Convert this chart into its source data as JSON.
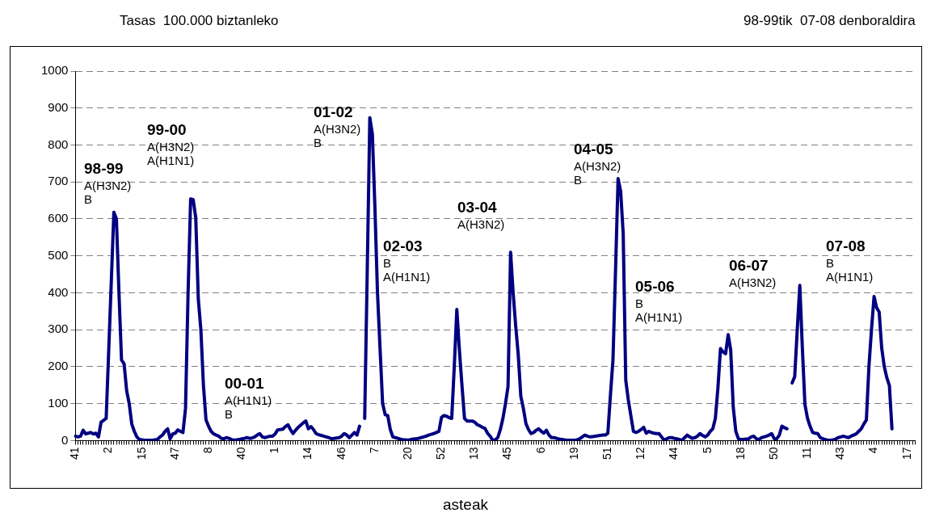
{
  "chart_data": {
    "type": "line",
    "title": "Tasas  100.000 biztanleko",
    "subtitle": "98-99tik  07-08 denboraldira",
    "xlabel": "asteak",
    "categories": [
      "41",
      null,
      null,
      null,
      null,
      null,
      null,
      null,
      null,
      null,
      null,
      null,
      null,
      "2",
      null,
      null,
      null,
      null,
      null,
      null,
      null,
      null,
      null,
      null,
      null,
      null,
      "15",
      null,
      null,
      null,
      null,
      null,
      null,
      null,
      null,
      null,
      null,
      null,
      null,
      "47",
      null,
      null,
      null,
      null,
      null,
      null,
      null,
      null,
      null,
      null,
      null,
      null,
      "8",
      null,
      null,
      null,
      null,
      null,
      null,
      null,
      null,
      null,
      null,
      null,
      null,
      "40",
      null,
      null,
      null,
      null,
      null,
      null,
      null,
      null,
      null,
      null,
      null,
      null,
      "1",
      null,
      null,
      null,
      null,
      null,
      null,
      null,
      null,
      null,
      null,
      null,
      null,
      "14",
      null,
      null,
      null,
      null,
      null,
      null,
      null,
      null,
      null,
      null,
      null,
      null,
      "46",
      null,
      null,
      null,
      null,
      null,
      null,
      null,
      null,
      null,
      null,
      null,
      null,
      "7",
      null,
      null,
      null,
      null,
      null,
      null,
      null,
      null,
      null,
      null,
      null,
      null,
      "20",
      null,
      null,
      null,
      null,
      null,
      null,
      null,
      null,
      null,
      null,
      null,
      null,
      "52",
      null,
      null,
      null,
      null,
      null,
      null,
      null,
      null,
      null,
      null,
      null,
      null,
      "13",
      null,
      null,
      null,
      null,
      null,
      null,
      null,
      null,
      null,
      null,
      null,
      null,
      "45",
      null,
      null,
      null,
      null,
      null,
      null,
      null,
      null,
      null,
      null,
      null,
      null,
      "6",
      null,
      null,
      null,
      null,
      null,
      null,
      null,
      null,
      null,
      null,
      null,
      null,
      "19",
      null,
      null,
      null,
      null,
      null,
      null,
      null,
      null,
      null,
      null,
      null,
      null,
      "51",
      null,
      null,
      null,
      null,
      null,
      null,
      null,
      null,
      null,
      null,
      null,
      null,
      "12",
      null,
      null,
      null,
      null,
      null,
      null,
      null,
      null,
      null,
      null,
      null,
      null,
      "44",
      null,
      null,
      null,
      null,
      null,
      null,
      null,
      null,
      null,
      null,
      null,
      null,
      "5",
      null,
      null,
      null,
      null,
      null,
      null,
      null,
      null,
      null,
      null,
      null,
      null,
      "18",
      null,
      null,
      null,
      null,
      null,
      null,
      null,
      null,
      null,
      null,
      null,
      null,
      "50",
      null,
      null,
      null,
      null,
      null,
      null,
      null,
      null,
      null,
      null,
      null,
      null,
      "11",
      null,
      null,
      null,
      null,
      null,
      null,
      null,
      null,
      null,
      null,
      null,
      null,
      "43",
      null,
      null,
      null,
      null,
      null,
      null,
      null,
      null,
      null,
      null,
      null,
      null,
      "4",
      null,
      null,
      null,
      null,
      null,
      null,
      null,
      null,
      null,
      null,
      null,
      null,
      "17",
      null,
      null,
      null
    ],
    "color": "#000080",
    "values": [
      12,
      10,
      12,
      28,
      18,
      20,
      22,
      18,
      20,
      10,
      50,
      55,
      60,
      245,
      430,
      618,
      600,
      400,
      218,
      208,
      135,
      100,
      45,
      25,
      10,
      3,
      2,
      1,
      1,
      1,
      1,
      2,
      3,
      10,
      15,
      25,
      32,
      5,
      18,
      20,
      29,
      25,
      22,
      87,
      400,
      654,
      652,
      603,
      383,
      300,
      150,
      56,
      39,
      25,
      18,
      15,
      12,
      6,
      5,
      8,
      6,
      3,
      1,
      2,
      3,
      5,
      6,
      8,
      6,
      7,
      10,
      15,
      19,
      10,
      8,
      10,
      12,
      12,
      18,
      29,
      30,
      31,
      38,
      43,
      30,
      19,
      28,
      36,
      42,
      48,
      53,
      32,
      38,
      30,
      19,
      16,
      14,
      12,
      10,
      8,
      5,
      6,
      7,
      8,
      12,
      19,
      15,
      8,
      15,
      22,
      15,
      39,
      null,
      60,
      460,
      874,
      830,
      630,
      400,
      250,
      101,
      70,
      68,
      30,
      10,
      8,
      6,
      4,
      2,
      2,
      1,
      3,
      4,
      5,
      6,
      8,
      10,
      12,
      15,
      17,
      19,
      22,
      25,
      63,
      68,
      66,
      62,
      60,
      200,
      355,
      245,
      150,
      60,
      53,
      53,
      53,
      50,
      43,
      40,
      36,
      33,
      20,
      12,
      1,
      2,
      8,
      30,
      60,
      100,
      146,
      510,
      400,
      310,
      232,
      120,
      87,
      46,
      30,
      19,
      22,
      28,
      32,
      25,
      20,
      28,
      15,
      8,
      8,
      6,
      4,
      3,
      2,
      1,
      1,
      1,
      1,
      2,
      5,
      10,
      15,
      12,
      10,
      11,
      12,
      13,
      14,
      15,
      15,
      20,
      122,
      218,
      460,
      709,
      675,
      560,
      163,
      110,
      67,
      25,
      22,
      25,
      30,
      36,
      20,
      25,
      22,
      20,
      19,
      19,
      10,
      1,
      5,
      8,
      8,
      6,
      5,
      3,
      1,
      8,
      15,
      10,
      6,
      8,
      12,
      19,
      14,
      10,
      15,
      25,
      32,
      60,
      142,
      249,
      240,
      235,
      287,
      245,
      90,
      25,
      5,
      3,
      3,
      4,
      5,
      10,
      12,
      5,
      3,
      8,
      10,
      12,
      15,
      19,
      5,
      5,
      15,
      39,
      35,
      32,
      null,
      156,
      173,
      300,
      420,
      250,
      98,
      60,
      39,
      22,
      20,
      19,
      8,
      5,
      3,
      1,
      1,
      2,
      4,
      8,
      10,
      12,
      10,
      8,
      12,
      15,
      18,
      25,
      32,
      45,
      56,
      200,
      300,
      390,
      360,
      348,
      250,
      200,
      170,
      149,
      32,
      null,
      null,
      null,
      null,
      null,
      null,
      null,
      null,
      null
    ],
    "ylim": [
      0,
      1000
    ],
    "yticks": [
      0,
      100,
      200,
      300,
      400,
      500,
      600,
      700,
      800,
      900,
      1000
    ],
    "grid": "y",
    "legend": false,
    "marker": "none",
    "line_style": "solid",
    "annotations": [
      "98-99\nA(H3N2)\nB",
      "99-00\nA(H3N2)\nA(H1N1)",
      "00-01\nA(H1N1)\nB",
      "01-02\nA(H3N2)\nB",
      "02-03\nB\nA(H1N1)",
      "03-04\nA(H3N2)",
      "04-05\nA(H3N2)\nB",
      "05-06\nB\nA(H1N1)",
      "06-07\nA(H3N2)",
      "07-08\nB\nA(H1N1)"
    ]
  }
}
